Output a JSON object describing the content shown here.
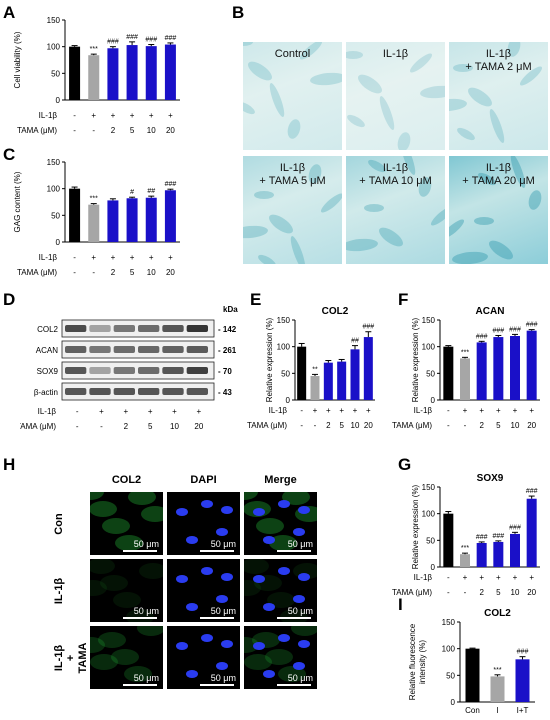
{
  "panel_labels": {
    "A": "A",
    "B": "B",
    "C": "C",
    "D": "D",
    "E": "E",
    "F": "F",
    "G": "G",
    "H": "H",
    "I": "I"
  },
  "colors": {
    "control": "#000000",
    "il1b": "#a6a6a6",
    "tama": "#1a10c8"
  },
  "chart_data": [
    {
      "id": "A",
      "type": "bar",
      "ylabel": "Cell viability (%)",
      "ylim": [
        0,
        150
      ],
      "yticks": [
        0,
        50,
        100,
        150
      ],
      "values": [
        100,
        84,
        97,
        103,
        101,
        104
      ],
      "errors": [
        2,
        2,
        3,
        6,
        3,
        3
      ],
      "significance": [
        "",
        "***",
        "###",
        "###",
        "###",
        "###"
      ],
      "row_labels": [
        "IL-1β",
        "TAMA (μM)"
      ],
      "rows": [
        [
          "-",
          "+",
          "+",
          "+",
          "+",
          "+"
        ],
        [
          "-",
          "-",
          "2",
          "5",
          "10",
          "20"
        ]
      ]
    },
    {
      "id": "C",
      "type": "bar",
      "ylabel": "GAG content (%)",
      "ylim": [
        0,
        150
      ],
      "yticks": [
        0,
        50,
        100,
        150
      ],
      "values": [
        100,
        70,
        78,
        82,
        83,
        97
      ],
      "errors": [
        3,
        2,
        3,
        2,
        3,
        2
      ],
      "significance": [
        "",
        "***",
        "",
        "#",
        "##",
        "###"
      ],
      "row_labels": [
        "IL-1β",
        "TAMA (μM)"
      ],
      "rows": [
        [
          "-",
          "+",
          "+",
          "+",
          "+",
          "+"
        ],
        [
          "-",
          "-",
          "2",
          "5",
          "10",
          "20"
        ]
      ]
    },
    {
      "id": "E",
      "type": "bar",
      "title": "COL2",
      "ylabel": "Relative expression (%)",
      "ylim": [
        0,
        150
      ],
      "yticks": [
        0,
        50,
        100,
        150
      ],
      "values": [
        100,
        45,
        70,
        72,
        95,
        118
      ],
      "errors": [
        6,
        3,
        4,
        4,
        7,
        10
      ],
      "significance": [
        "",
        "**",
        "",
        "",
        "##",
        "###"
      ],
      "row_labels": [
        "IL-1β",
        "TAMA (μM)"
      ],
      "rows": [
        [
          "-",
          "+",
          "+",
          "+",
          "+",
          "+"
        ],
        [
          "-",
          "-",
          "2",
          "5",
          "10",
          "20"
        ]
      ]
    },
    {
      "id": "F",
      "type": "bar",
      "title": "ACAN",
      "ylabel": "Relative expression (%)",
      "ylim": [
        0,
        150
      ],
      "yticks": [
        0,
        50,
        100,
        150
      ],
      "values": [
        100,
        78,
        108,
        118,
        120,
        130
      ],
      "errors": [
        2,
        2,
        2,
        3,
        3,
        2
      ],
      "significance": [
        "",
        "***",
        "###",
        "###",
        "###",
        "###"
      ],
      "row_labels": [
        "IL-1β",
        "TAMA (μM)"
      ],
      "rows": [
        [
          "-",
          "+",
          "+",
          "+",
          "+",
          "+"
        ],
        [
          "-",
          "-",
          "2",
          "5",
          "10",
          "20"
        ]
      ]
    },
    {
      "id": "G",
      "type": "bar",
      "title": "SOX9",
      "ylabel": "Relative expression (%)",
      "ylim": [
        0,
        150
      ],
      "yticks": [
        0,
        50,
        100,
        150
      ],
      "values": [
        100,
        24,
        45,
        47,
        62,
        128
      ],
      "errors": [
        4,
        2,
        2,
        2,
        3,
        5
      ],
      "significance": [
        "",
        "***",
        "###",
        "###",
        "###",
        "###"
      ],
      "row_labels": [
        "IL-1β",
        "TAMA (μM)"
      ],
      "rows": [
        [
          "-",
          "+",
          "+",
          "+",
          "+",
          "+"
        ],
        [
          "-",
          "-",
          "2",
          "5",
          "10",
          "20"
        ]
      ]
    },
    {
      "id": "I",
      "type": "bar",
      "title": "COL2",
      "ylabel": "Relative fluorescence intensity (%)",
      "ylim": [
        0,
        150
      ],
      "yticks": [
        0,
        50,
        100,
        150
      ],
      "values": [
        100,
        48,
        80
      ],
      "errors": [
        1,
        3,
        5
      ],
      "significance": [
        "",
        "***",
        "###"
      ],
      "categories": [
        "Con",
        "I",
        "I+T"
      ]
    }
  ],
  "histology": {
    "tiles": [
      {
        "label": "Control"
      },
      {
        "label": "IL-1β"
      },
      {
        "label": "IL-1β\n+ TAMA 2 μM"
      },
      {
        "label": "IL-1β\n+ TAMA 5 μM"
      },
      {
        "label": "IL-1β\n+ TAMA 10 μM"
      },
      {
        "label": "IL-1β\n+ TAMA 20 μM"
      }
    ]
  },
  "western": {
    "kda_header": "kDa",
    "bands": [
      {
        "name": "COL2",
        "kda": "142"
      },
      {
        "name": "ACAN",
        "kda": "261"
      },
      {
        "name": "SOX9",
        "kda": "70"
      },
      {
        "name": "β-actin",
        "kda": "43"
      }
    ],
    "row_labels": [
      "IL-1β",
      "TAMA (μM)"
    ],
    "rows": [
      [
        "-",
        "+",
        "+",
        "+",
        "+",
        "+"
      ],
      [
        "-",
        "-",
        "2",
        "5",
        "10",
        "20"
      ]
    ]
  },
  "fluorescence": {
    "columns": [
      "COL2",
      "DAPI",
      "Merge"
    ],
    "rows": [
      "Con",
      "IL-1β",
      "IL-1β\n+\nTAMA"
    ],
    "scale_bar": "50 μm"
  }
}
